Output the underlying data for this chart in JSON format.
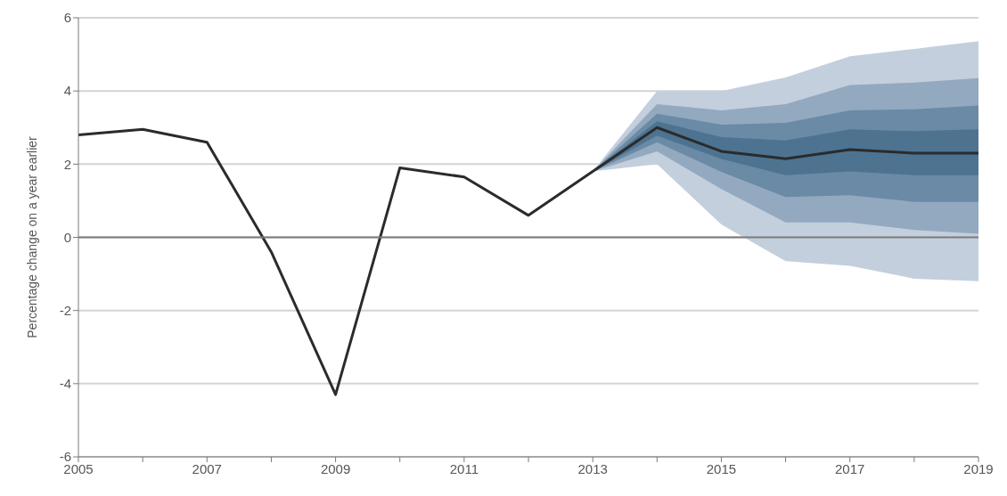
{
  "chart_data": {
    "type": "line",
    "ylabel": "Percentage change on a year earlier",
    "x": [
      2005,
      2006,
      2007,
      2008,
      2009,
      2010,
      2011,
      2012,
      2013,
      2014,
      2015,
      2016,
      2017,
      2018,
      2019
    ],
    "xlim": [
      2005,
      2019
    ],
    "xticks": [
      2005,
      {
        "value": 2006,
        "label": null
      },
      2007,
      {
        "value": 2008,
        "label": null
      },
      2009,
      {
        "value": 2010,
        "label": null
      },
      2011,
      {
        "value": 2012,
        "label": null
      },
      2013,
      {
        "value": 2014,
        "label": null
      },
      2015,
      {
        "value": 2016,
        "label": null
      },
      2017,
      {
        "value": 2018,
        "label": null
      },
      2019
    ],
    "ylim": [
      -6,
      6
    ],
    "yticks": [
      -6,
      -4,
      -2,
      0,
      2,
      4,
      6
    ],
    "grid": "y",
    "ref_lines": [
      {
        "axis": "y",
        "value": 0,
        "color": "#7a7a7a"
      }
    ],
    "series": [
      {
        "type": "area",
        "color": "#c3cfdd",
        "x": [
          2013,
          2014,
          2015,
          2016,
          2017,
          2018,
          2019
        ],
        "values": [
          null,
          null,
          null,
          null,
          null,
          null,
          null
        ],
        "lower": [
          1.8,
          2.0,
          0.35,
          -0.65,
          -0.78,
          -1.13,
          -1.2
        ],
        "upper": [
          1.8,
          4.0,
          4.0,
          4.37,
          4.95,
          5.15,
          5.36
        ]
      },
      {
        "type": "area",
        "color": "#93a9bf",
        "x": [
          2013,
          2014,
          2015,
          2016,
          2017,
          2018,
          2019
        ],
        "values": [
          null,
          null,
          null,
          null,
          null,
          null,
          null
        ],
        "lower": [
          1.8,
          2.35,
          1.32,
          0.41,
          0.41,
          0.2,
          0.1
        ],
        "upper": [
          1.8,
          3.64,
          3.47,
          3.64,
          4.16,
          4.23,
          4.35
        ]
      },
      {
        "type": "area",
        "color": "#6a8aa6",
        "x": [
          2013,
          2014,
          2015,
          2016,
          2017,
          2018,
          2019
        ],
        "values": [
          null,
          null,
          null,
          null,
          null,
          null,
          null
        ],
        "lower": [
          1.8,
          2.6,
          1.79,
          1.1,
          1.15,
          0.97,
          0.97
        ],
        "upper": [
          1.8,
          3.38,
          3.08,
          3.13,
          3.47,
          3.5,
          3.6
        ]
      },
      {
        "type": "area",
        "color": "#4d7391",
        "x": [
          2013,
          2014,
          2015,
          2016,
          2017,
          2018,
          2019
        ],
        "values": [
          null,
          null,
          null,
          null,
          null,
          null,
          null
        ],
        "lower": [
          1.8,
          2.78,
          2.14,
          1.7,
          1.8,
          1.7,
          1.7
        ],
        "upper": [
          1.8,
          3.17,
          2.74,
          2.65,
          2.95,
          2.9,
          2.95
        ]
      },
      {
        "color": "#2b2b2b",
        "values": [
          2.8,
          2.95,
          2.6,
          -0.4,
          -4.3,
          1.9,
          1.65,
          0.6,
          1.8,
          3.0,
          2.35,
          2.15,
          2.4,
          2.3,
          2.3
        ]
      }
    ]
  }
}
